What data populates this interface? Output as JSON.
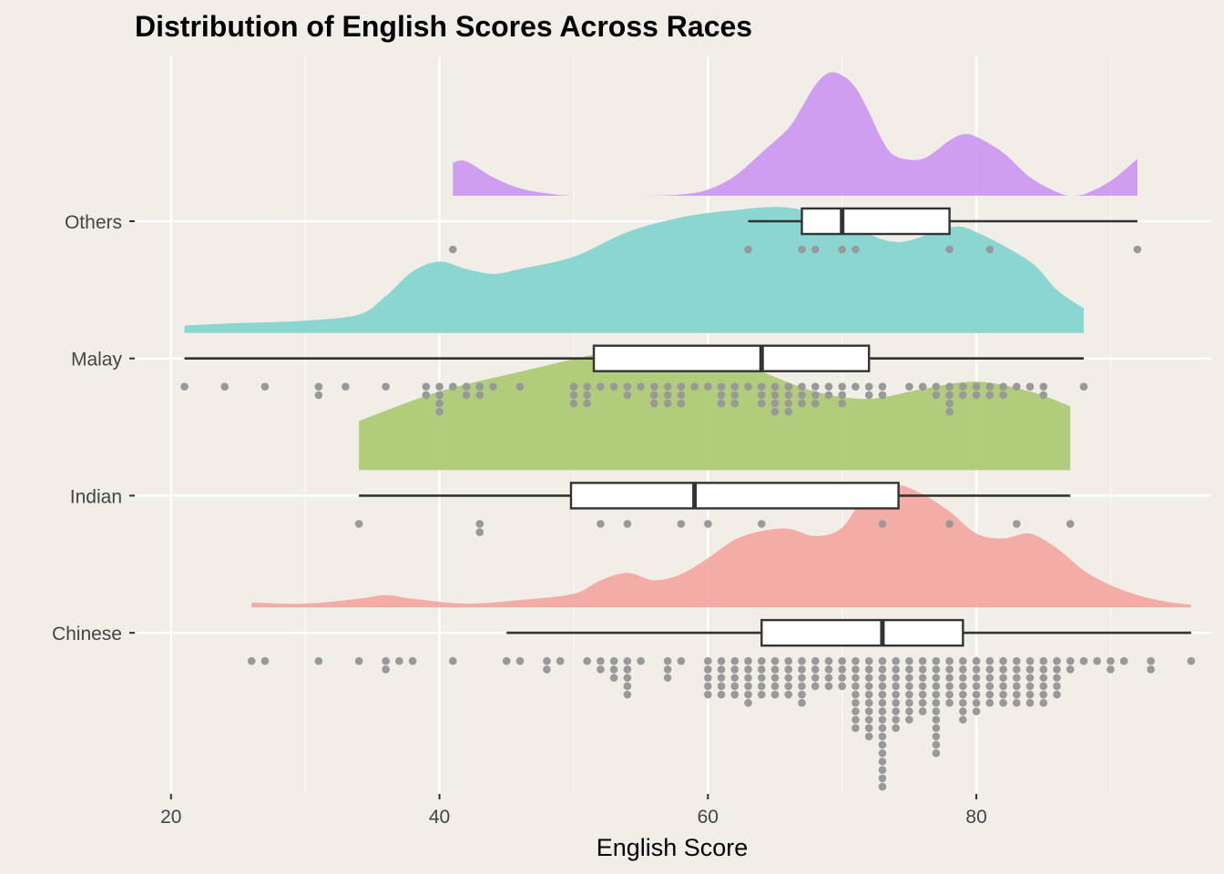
{
  "chart_data": {
    "type": "raincloud",
    "title": "Distribution of English Scores Across Races",
    "xlabel": "English Score",
    "ylabel": "",
    "xlim": [
      17.3,
      97.5
    ],
    "x_ticks": [
      20,
      40,
      60,
      80
    ],
    "grid": true,
    "colors": {
      "background": "#f0eee6",
      "grid": "#ffffff",
      "box_fill": "#ffffff",
      "box_stroke": "#333333",
      "points": "#999999"
    },
    "categories": [
      "Others",
      "Malay",
      "Indian",
      "Chinese"
    ],
    "series": [
      {
        "name": "Others",
        "color": "#cc95f2",
        "box": {
          "whisker_low": 63,
          "q1": 67,
          "median": 70,
          "q3": 78,
          "whisker_high": 92
        },
        "density": [
          [
            41,
            0.27
          ],
          [
            42,
            0.28
          ],
          [
            44,
            0.15
          ],
          [
            46,
            0.06
          ],
          [
            48,
            0.02
          ],
          [
            50,
            0.0
          ],
          [
            55,
            0.0
          ],
          [
            58,
            0.01
          ],
          [
            60,
            0.05
          ],
          [
            62,
            0.16
          ],
          [
            64,
            0.35
          ],
          [
            66,
            0.55
          ],
          [
            67,
            0.72
          ],
          [
            68,
            0.9
          ],
          [
            69,
            1.0
          ],
          [
            70,
            0.98
          ],
          [
            71,
            0.88
          ],
          [
            72,
            0.68
          ],
          [
            73,
            0.45
          ],
          [
            74,
            0.32
          ],
          [
            76,
            0.3
          ],
          [
            78,
            0.45
          ],
          [
            79,
            0.5
          ],
          [
            80,
            0.48
          ],
          [
            82,
            0.35
          ],
          [
            84,
            0.15
          ],
          [
            86,
            0.03
          ],
          [
            87,
            0.0
          ],
          [
            88,
            0.01
          ],
          [
            90,
            0.12
          ],
          [
            92,
            0.3
          ]
        ],
        "points": [
          41,
          63,
          67,
          68,
          70,
          71,
          78,
          81,
          92
        ]
      },
      {
        "name": "Malay",
        "color": "#7fd3cd",
        "box": {
          "whisker_low": 21,
          "q1": 51.5,
          "median": 64,
          "q3": 72,
          "whisker_high": 88
        },
        "density": [
          [
            21,
            0.06
          ],
          [
            25,
            0.08
          ],
          [
            30,
            0.1
          ],
          [
            34,
            0.15
          ],
          [
            36,
            0.3
          ],
          [
            38,
            0.5
          ],
          [
            40,
            0.58
          ],
          [
            42,
            0.52
          ],
          [
            44,
            0.48
          ],
          [
            46,
            0.52
          ],
          [
            50,
            0.62
          ],
          [
            54,
            0.82
          ],
          [
            58,
            0.94
          ],
          [
            62,
            1.0
          ],
          [
            66,
            1.02
          ],
          [
            70,
            0.9
          ],
          [
            74,
            0.74
          ],
          [
            78,
            0.86
          ],
          [
            80,
            0.82
          ],
          [
            84,
            0.58
          ],
          [
            86,
            0.35
          ],
          [
            88,
            0.2
          ]
        ],
        "points": [
          21,
          24,
          27,
          31,
          31,
          33,
          36,
          39,
          39,
          40,
          40,
          40,
          40,
          41,
          42,
          42,
          43,
          43,
          44,
          46,
          50,
          50,
          50,
          51,
          51,
          51,
          52,
          53,
          54,
          54,
          55,
          56,
          56,
          56,
          57,
          57,
          57,
          58,
          58,
          58,
          59,
          60,
          61,
          61,
          61,
          62,
          62,
          62,
          63,
          64,
          64,
          64,
          65,
          65,
          65,
          65,
          66,
          66,
          66,
          66,
          67,
          67,
          67,
          68,
          68,
          68,
          69,
          69,
          70,
          70,
          70,
          71,
          72,
          72,
          73,
          73,
          75,
          76,
          77,
          77,
          78,
          78,
          78,
          78,
          79,
          79,
          80,
          80,
          81,
          81,
          82,
          82,
          83,
          84,
          85,
          85,
          88
        ]
      },
      {
        "name": "Indian",
        "color": "#aac86f",
        "box": {
          "whisker_low": 34,
          "q1": 49.8,
          "median": 59,
          "q3": 74.2,
          "whisker_high": 87
        },
        "density": [
          [
            34,
            0.4
          ],
          [
            40,
            0.64
          ],
          [
            46,
            0.8
          ],
          [
            52,
            0.95
          ],
          [
            56,
            1.0
          ],
          [
            60,
            0.96
          ],
          [
            64,
            0.8
          ],
          [
            68,
            0.64
          ],
          [
            72,
            0.58
          ],
          [
            76,
            0.66
          ],
          [
            80,
            0.72
          ],
          [
            84,
            0.64
          ],
          [
            87,
            0.52
          ]
        ],
        "points": [
          34,
          43,
          43,
          52,
          54,
          58,
          60,
          64,
          73,
          78,
          83,
          87
        ]
      },
      {
        "name": "Chinese",
        "color": "#f4a59e",
        "box": {
          "whisker_low": 45,
          "q1": 64,
          "median": 73,
          "q3": 79,
          "whisker_high": 96
        },
        "density": [
          [
            26,
            0.04
          ],
          [
            30,
            0.03
          ],
          [
            34,
            0.07
          ],
          [
            36,
            0.1
          ],
          [
            38,
            0.07
          ],
          [
            42,
            0.03
          ],
          [
            46,
            0.06
          ],
          [
            50,
            0.11
          ],
          [
            52,
            0.22
          ],
          [
            54,
            0.28
          ],
          [
            56,
            0.22
          ],
          [
            58,
            0.27
          ],
          [
            60,
            0.4
          ],
          [
            62,
            0.55
          ],
          [
            64,
            0.62
          ],
          [
            66,
            0.64
          ],
          [
            68,
            0.58
          ],
          [
            70,
            0.65
          ],
          [
            72,
            0.95
          ],
          [
            74,
            1.0
          ],
          [
            76,
            0.92
          ],
          [
            78,
            0.78
          ],
          [
            80,
            0.6
          ],
          [
            82,
            0.56
          ],
          [
            84,
            0.6
          ],
          [
            86,
            0.48
          ],
          [
            88,
            0.3
          ],
          [
            90,
            0.18
          ],
          [
            92,
            0.1
          ],
          [
            94,
            0.05
          ],
          [
            96,
            0.02
          ]
        ],
        "points": [
          26,
          27,
          31,
          34,
          36,
          36,
          37,
          38,
          41,
          45,
          46,
          48,
          48,
          49,
          51,
          52,
          52,
          53,
          53,
          53,
          54,
          54,
          54,
          54,
          54,
          55,
          57,
          57,
          57,
          58,
          60,
          60,
          60,
          60,
          60,
          61,
          61,
          61,
          61,
          61,
          62,
          62,
          62,
          62,
          62,
          63,
          63,
          63,
          63,
          63,
          63,
          64,
          64,
          64,
          64,
          64,
          65,
          65,
          65,
          65,
          65,
          66,
          66,
          66,
          66,
          66,
          67,
          67,
          67,
          67,
          67,
          67,
          68,
          68,
          68,
          68,
          69,
          69,
          69,
          69,
          70,
          70,
          70,
          70,
          71,
          71,
          71,
          71,
          71,
          71,
          71,
          71,
          71,
          72,
          72,
          72,
          72,
          72,
          72,
          72,
          72,
          72,
          72,
          73,
          73,
          73,
          73,
          73,
          73,
          73,
          73,
          73,
          73,
          73,
          73,
          73,
          73,
          73,
          73,
          74,
          74,
          74,
          74,
          74,
          74,
          74,
          74,
          74,
          75,
          75,
          75,
          75,
          75,
          75,
          75,
          75,
          76,
          76,
          76,
          76,
          76,
          76,
          76,
          77,
          77,
          77,
          77,
          77,
          77,
          77,
          77,
          77,
          77,
          77,
          77,
          78,
          78,
          78,
          78,
          78,
          78,
          79,
          79,
          79,
          79,
          79,
          79,
          79,
          79,
          80,
          80,
          80,
          80,
          80,
          80,
          80,
          81,
          81,
          81,
          81,
          81,
          81,
          82,
          82,
          82,
          82,
          82,
          82,
          83,
          83,
          83,
          83,
          83,
          83,
          84,
          84,
          84,
          84,
          84,
          84,
          85,
          85,
          85,
          85,
          85,
          85,
          86,
          86,
          86,
          86,
          86,
          87,
          87,
          88,
          89,
          90,
          90,
          91,
          93,
          93,
          96
        ]
      }
    ]
  }
}
